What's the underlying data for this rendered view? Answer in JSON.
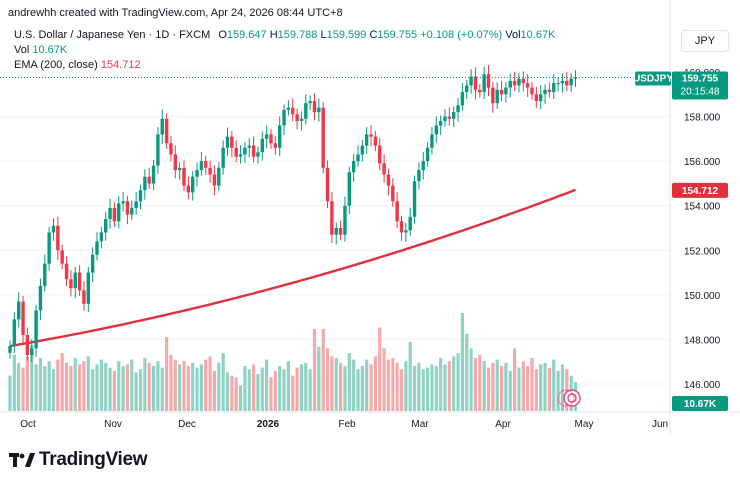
{
  "watermark_text": "andrewhh created with TradingView.com, Apr 24, 2026 08:44 UTC+8",
  "legend": {
    "instrument": "U.S. Dollar / Japanese Yen · 1D · FXCM",
    "o_label": "O",
    "o_value": "159.647",
    "h_label": "H",
    "h_value": "159.788",
    "l_label": "L",
    "l_value": "159.599",
    "c_label": "C",
    "c_value": "159.755",
    "change": "+0.108 (+0.07%)",
    "vol_label": "Vol",
    "vol_value": "10.67K",
    "vol_row_label": "Vol",
    "vol_row_value": "10.67K",
    "ema_label": "EMA (200, close)",
    "ema_value": "154.712"
  },
  "currency_button": "JPY",
  "brand": "TradingView",
  "colors": {
    "up": "#089981",
    "down": "#f23645",
    "ema": "#e0303b",
    "vol_up": "#8fd3c4",
    "vol_down": "#f7a9a9"
  },
  "chart_data": {
    "type": "candlestick",
    "symbol": "USDJPY",
    "timeframe": "1D",
    "y_axis_ticks": [
      "146.000",
      "148.000",
      "150.000",
      "152.000",
      "154.000",
      "156.000",
      "158.000",
      "160.000"
    ],
    "ylim": [
      145.0,
      161.0
    ],
    "x_axis_labels": [
      "Oct",
      "Nov",
      "Dec",
      "2026",
      "Feb",
      "Mar",
      "Apr",
      "May",
      "Jun"
    ],
    "price_badge": {
      "symbol": "USDJPY",
      "value": "159.755",
      "countdown": "20:15:48"
    },
    "ema_badge": "154.712",
    "volume_badge": "10.67K",
    "closes": [
      147.7,
      148.9,
      149.7,
      148.2,
      147.3,
      147.6,
      149.3,
      150.4,
      151.4,
      152.8,
      153.1,
      152.0,
      151.4,
      150.7,
      150.3,
      151.0,
      150.2,
      149.6,
      151.0,
      151.8,
      152.4,
      152.8,
      153.4,
      153.9,
      153.3,
      154.1,
      154.2,
      153.6,
      153.9,
      154.2,
      154.7,
      155.3,
      155.0,
      155.8,
      157.2,
      157.9,
      156.8,
      156.3,
      155.6,
      155.7,
      154.9,
      154.6,
      155.3,
      155.6,
      156.0,
      155.7,
      155.4,
      154.9,
      155.7,
      156.6,
      157.1,
      156.6,
      156.2,
      156.3,
      156.6,
      156.7,
      156.2,
      156.4,
      157.0,
      157.2,
      156.8,
      156.6,
      157.6,
      158.3,
      158.4,
      158.1,
      157.8,
      157.9,
      158.6,
      158.7,
      158.2,
      158.4,
      155.7,
      154.2,
      152.7,
      153.0,
      152.7,
      154.0,
      155.5,
      156.0,
      156.3,
      156.7,
      157.2,
      157.1,
      156.7,
      155.9,
      155.4,
      154.9,
      154.2,
      153.3,
      152.8,
      152.9,
      153.5,
      155.1,
      155.6,
      156.0,
      156.6,
      157.2,
      157.6,
      157.8,
      158.0,
      157.9,
      158.2,
      158.5,
      159.1,
      159.4,
      159.8,
      159.2,
      159.1,
      159.9,
      159.3,
      158.6,
      159.2,
      159.0,
      159.3,
      159.6,
      159.4,
      159.7,
      159.5,
      159.3,
      159.0,
      158.7,
      159.0,
      159.2,
      159.1,
      159.5,
      159.5,
      159.6,
      159.4,
      159.7,
      159.755
    ],
    "volumes": [
      2.2,
      3.5,
      3.0,
      2.7,
      3.4,
      4.1,
      2.9,
      3.3,
      2.8,
      3.1,
      2.6,
      3.2,
      3.6,
      3.0,
      2.8,
      3.3,
      2.9,
      3.1,
      3.4,
      2.6,
      2.9,
      3.2,
      3.0,
      2.7,
      2.5,
      3.1,
      2.8,
      2.9,
      3.2,
      2.4,
      2.6,
      3.3,
      3.0,
      2.8,
      3.1,
      2.7,
      4.6,
      3.5,
      3.2,
      2.9,
      3.1,
      2.8,
      3.0,
      2.7,
      2.9,
      3.2,
      3.4,
      2.5,
      3.0,
      3.6,
      2.4,
      2.2,
      2.1,
      1.6,
      2.8,
      2.6,
      2.9,
      2.3,
      2.7,
      3.2,
      2.1,
      2.5,
      2.8,
      2.6,
      3.1,
      2.2,
      2.7,
      2.9,
      3.0,
      2.6,
      5.1,
      4.0,
      5.1,
      3.9,
      3.4,
      3.3,
      3.0,
      2.8,
      3.6,
      3.2,
      2.6,
      2.8,
      3.2,
      2.9,
      3.4,
      5.2,
      3.9,
      3.2,
      3.3,
      3.0,
      2.6,
      3.1,
      4.3,
      2.8,
      3.0,
      2.6,
      2.7,
      2.9,
      2.8,
      3.3,
      2.9,
      3.1,
      3.4,
      3.6,
      6.1,
      4.8,
      3.9,
      3.3,
      3.5,
      3.1,
      2.7,
      3.0,
      3.2,
      2.8,
      3.0,
      2.5,
      3.9,
      2.7,
      3.1,
      2.8,
      3.3,
      2.6,
      2.9,
      3.0,
      2.7,
      3.2,
      2.5,
      2.9,
      2.6,
      2.2,
      1.8
    ],
    "ema200_start": 147.7,
    "ema200_end": 154.712
  }
}
